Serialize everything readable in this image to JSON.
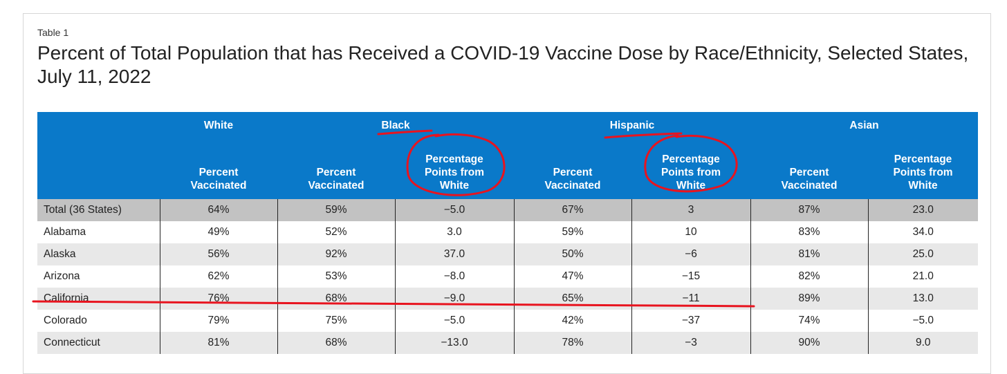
{
  "table_label": "Table 1",
  "title": "Percent of Total Population that has Received a COVID-19 Vaccine Dose by Race/Ethnicity, Selected States, July 11, 2022",
  "group_headers": [
    "",
    "White",
    "",
    "Black",
    "",
    "Hispanic",
    "",
    "Asian",
    ""
  ],
  "sub_headers": [
    "",
    "Percent\nVaccinated",
    "Percent\nVaccinated",
    "Percentage\nPoints from\nWhite",
    "Percent\nVaccinated",
    "Percentage\nPoints from\nWhite",
    "Percent\nVaccinated",
    "Percentage\nPoints from\nWhite"
  ],
  "rows": [
    [
      "Total (36 States)",
      "64%",
      "59%",
      "−5.0",
      "67%",
      "3",
      "87%",
      "23.0"
    ],
    [
      "Alabama",
      "49%",
      "52%",
      "3.0",
      "59%",
      "10",
      "83%",
      "34.0"
    ],
    [
      "Alaska",
      "56%",
      "92%",
      "37.0",
      "50%",
      "−6",
      "81%",
      "25.0"
    ],
    [
      "Arizona",
      "62%",
      "53%",
      "−8.0",
      "47%",
      "−15",
      "82%",
      "21.0"
    ],
    [
      "California",
      "76%",
      "68%",
      "−9.0",
      "65%",
      "−11",
      "89%",
      "13.0"
    ],
    [
      "Colorado",
      "79%",
      "75%",
      "−5.0",
      "42%",
      "−37",
      "74%",
      "−5.0"
    ],
    [
      "Connecticut",
      "81%",
      "68%",
      "−13.0",
      "78%",
      "−3",
      "90%",
      "9.0"
    ]
  ],
  "colors": {
    "header_bg": "#0a79c9",
    "total_row_bg": "#c2c2c2",
    "stripe_bg": "#e8e8e8",
    "annotation_red": "#e8141f"
  }
}
